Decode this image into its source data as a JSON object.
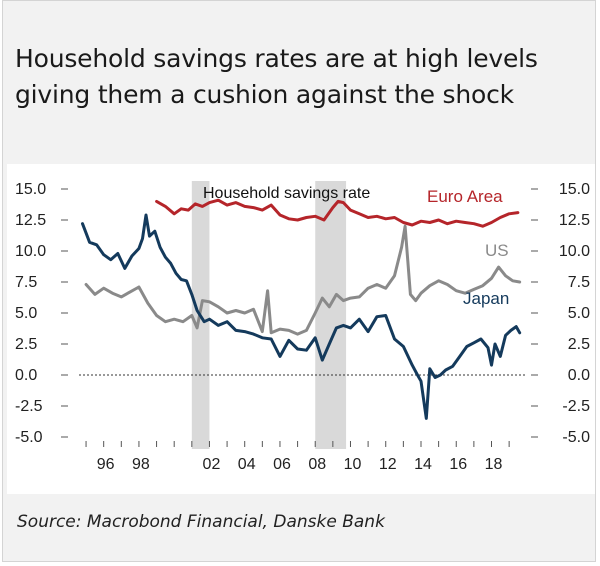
{
  "header": {
    "title": "Household savings rates are at high levels giving them a cushion against the shock"
  },
  "footer": {
    "source": "Source: Macrobond Financial, Danske Bank"
  },
  "chart_data": {
    "type": "line",
    "title": "Household savings rate",
    "ylim": [
      -5.0,
      15.0
    ],
    "xlim": [
      1994.6,
      2019.9
    ],
    "y_ticks": [
      15.0,
      12.5,
      10.0,
      7.5,
      5.0,
      2.5,
      0.0,
      -2.5,
      -5.0
    ],
    "y_tick_labels": [
      "15.0",
      "12.5",
      "10.0",
      "7.5",
      "5.0",
      "2.5",
      "0.0",
      "-2.5",
      "-5.0"
    ],
    "x_ticks": [
      1996,
      1998,
      2002,
      2004,
      2006,
      2008,
      2010,
      2012,
      2014,
      2016,
      2018
    ],
    "x_tick_labels": [
      "96",
      "98",
      "02",
      "04",
      "06",
      "08",
      "10",
      "12",
      "14",
      "16",
      "18"
    ],
    "recessions": [
      [
        2001.0,
        2002.0
      ],
      [
        2008.0,
        2009.75
      ]
    ],
    "zero_line": "dotted",
    "series": [
      {
        "name": "Euro Area",
        "color": "#b5252a",
        "x": [
          1999.0,
          1999.5,
          2000.0,
          2000.4,
          2000.8,
          2001.2,
          2001.6,
          2002.0,
          2002.5,
          2003.0,
          2003.5,
          2004.0,
          2004.5,
          2005.0,
          2005.5,
          2006.0,
          2006.5,
          2007.0,
          2007.5,
          2008.0,
          2008.5,
          2009.0,
          2009.3,
          2009.6,
          2010.0,
          2010.5,
          2011.0,
          2011.5,
          2012.0,
          2012.5,
          2013.0,
          2013.5,
          2014.0,
          2014.5,
          2015.0,
          2015.5,
          2016.0,
          2016.5,
          2017.0,
          2017.5,
          2018.0,
          2018.5,
          2019.0,
          2019.5
        ],
        "values": [
          14.0,
          13.6,
          13.0,
          13.4,
          13.3,
          13.8,
          13.6,
          13.9,
          14.1,
          13.7,
          13.9,
          13.6,
          13.5,
          13.3,
          13.7,
          12.9,
          12.6,
          12.5,
          12.7,
          12.8,
          12.5,
          13.5,
          14.0,
          13.9,
          13.3,
          13.0,
          12.7,
          12.8,
          12.6,
          12.7,
          12.3,
          12.1,
          12.4,
          12.3,
          12.5,
          12.2,
          12.4,
          12.3,
          12.2,
          12.0,
          12.3,
          12.7,
          13.0,
          13.1
        ]
      },
      {
        "name": "US",
        "color": "#8a8a8a",
        "x": [
          1995.0,
          1995.5,
          1996.0,
          1996.5,
          1997.0,
          1997.5,
          1998.0,
          1998.5,
          1999.0,
          1999.5,
          2000.0,
          2000.5,
          2001.0,
          2001.3,
          2001.6,
          2002.0,
          2002.5,
          2003.0,
          2003.5,
          2004.0,
          2004.5,
          2005.0,
          2005.3,
          2005.5,
          2006.0,
          2006.5,
          2007.0,
          2007.5,
          2008.0,
          2008.4,
          2008.8,
          2009.2,
          2009.6,
          2010.0,
          2010.5,
          2011.0,
          2011.5,
          2012.0,
          2012.5,
          2012.9,
          2013.1,
          2013.4,
          2013.7,
          2014.0,
          2014.5,
          2015.0,
          2015.5,
          2016.0,
          2016.5,
          2017.0,
          2017.5,
          2018.0,
          2018.4,
          2018.8,
          2019.2,
          2019.6
        ],
        "values": [
          7.3,
          6.5,
          7.0,
          6.6,
          6.3,
          6.7,
          7.1,
          5.8,
          4.8,
          4.3,
          4.5,
          4.3,
          4.8,
          3.8,
          6.0,
          5.9,
          5.5,
          5.0,
          5.2,
          5.0,
          5.3,
          3.5,
          6.8,
          3.4,
          3.7,
          3.6,
          3.3,
          3.6,
          5.0,
          6.2,
          5.5,
          6.5,
          6.0,
          6.2,
          6.3,
          7.0,
          7.3,
          7.0,
          8.0,
          10.3,
          12.0,
          6.5,
          6.0,
          6.6,
          7.2,
          7.6,
          7.3,
          6.8,
          6.6,
          6.9,
          7.2,
          7.8,
          8.7,
          8.0,
          7.6,
          7.5
        ]
      },
      {
        "name": "Japan",
        "color": "#143a5c",
        "x": [
          1994.8,
          1995.2,
          1995.6,
          1996.0,
          1996.4,
          1996.8,
          1997.2,
          1997.6,
          1998.0,
          1998.2,
          1998.4,
          1998.6,
          1998.9,
          1999.2,
          1999.5,
          1999.8,
          2000.1,
          2000.4,
          2000.7,
          2001.0,
          2001.3,
          2001.7,
          2002.0,
          2002.5,
          2003.0,
          2003.5,
          2004.0,
          2004.5,
          2005.0,
          2005.5,
          2006.0,
          2006.5,
          2007.0,
          2007.5,
          2008.0,
          2008.4,
          2008.8,
          2009.2,
          2009.6,
          2010.0,
          2010.5,
          2011.0,
          2011.5,
          2012.0,
          2012.5,
          2013.0,
          2013.5,
          2013.8,
          2014.0,
          2014.3,
          2014.5,
          2014.8,
          2015.1,
          2015.4,
          2015.8,
          2016.2,
          2016.6,
          2017.0,
          2017.4,
          2017.8,
          2018.0,
          2018.2,
          2018.5,
          2018.8,
          2019.1,
          2019.4,
          2019.6
        ],
        "values": [
          12.2,
          10.7,
          10.5,
          9.7,
          9.3,
          9.8,
          8.6,
          9.6,
          10.2,
          11.0,
          12.9,
          11.2,
          11.6,
          10.3,
          9.5,
          9.0,
          8.2,
          7.7,
          7.6,
          6.5,
          5.2,
          4.3,
          4.5,
          4.0,
          4.3,
          3.6,
          3.5,
          3.3,
          3.0,
          2.9,
          1.5,
          2.8,
          2.1,
          2.0,
          3.0,
          1.2,
          2.5,
          3.8,
          4.0,
          3.8,
          4.5,
          3.5,
          4.7,
          4.8,
          2.9,
          2.3,
          0.8,
          0.0,
          -0.5,
          -3.5,
          0.5,
          -0.2,
          0.0,
          0.4,
          0.7,
          1.5,
          2.3,
          2.6,
          2.9,
          2.2,
          0.8,
          2.5,
          1.5,
          3.2,
          3.6,
          3.9,
          3.4
        ]
      }
    ],
    "legend": [
      {
        "name": "Euro Area",
        "label": "Euro Area",
        "position": "top-right"
      },
      {
        "name": "US",
        "label": "US",
        "position": "right"
      },
      {
        "name": "Japan",
        "label": "Japan",
        "position": "right"
      }
    ],
    "colors": {
      "recession_band": "#d9d9d9",
      "axis": "#555555",
      "zero_line": "#333333",
      "text": "#222222"
    }
  }
}
